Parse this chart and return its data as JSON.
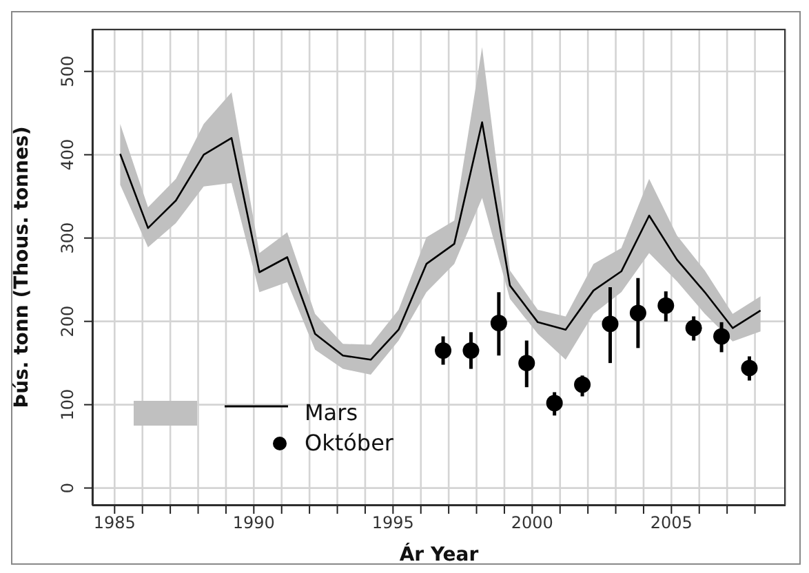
{
  "chart_data": {
    "type": "line",
    "xlabel": "Ár Year",
    "ylabel": "Þús. tonn (Thous. tonnes)",
    "xlim": [
      1984.2,
      2009.1
    ],
    "ylim": [
      -21,
      551
    ],
    "xticks": [
      1985,
      {
        "value": 1986,
        "label": null
      },
      {
        "value": 1987,
        "label": null
      },
      {
        "value": 1988,
        "label": null
      },
      {
        "value": 1989,
        "label": null
      },
      1990,
      {
        "value": 1991,
        "label": null
      },
      {
        "value": 1992,
        "label": null
      },
      {
        "value": 1993,
        "label": null
      },
      {
        "value": 1994,
        "label": null
      },
      1995,
      {
        "value": 1996,
        "label": null
      },
      {
        "value": 1997,
        "label": null
      },
      {
        "value": 1998,
        "label": null
      },
      {
        "value": 1999,
        "label": null
      },
      2000,
      {
        "value": 2001,
        "label": null
      },
      {
        "value": 2002,
        "label": null
      },
      {
        "value": 2003,
        "label": null
      },
      {
        "value": 2004,
        "label": null
      },
      2005,
      {
        "value": 2006,
        "label": null
      },
      {
        "value": 2007,
        "label": null
      },
      {
        "value": 2008,
        "label": null
      }
    ],
    "yticks": [
      0,
      100,
      200,
      300,
      400,
      500
    ],
    "grid": true,
    "legend": "bottom left",
    "series": [
      {
        "name": "Mars",
        "color": "#000000",
        "marker": "none",
        "x": [
          1985.2,
          1986.2,
          1987.2,
          1988.2,
          1989.2,
          1990.2,
          1991.2,
          1992.2,
          1993.2,
          1994.2,
          1995.2,
          1996.2,
          1997.2,
          1998.2,
          1999.2,
          2000.2,
          2001.2,
          2002.2,
          2003.2,
          2004.2,
          2005.2,
          2006.2,
          2007.2,
          2008.2
        ],
        "values": [
          401,
          312,
          345,
          400,
          420,
          259,
          277,
          185,
          159,
          154,
          190,
          269,
          293,
          439,
          243,
          199,
          190,
          237,
          260,
          327,
          274,
          235,
          192,
          213
        ],
        "lower": [
          364,
          289,
          318,
          362,
          366,
          235,
          247,
          166,
          143,
          136,
          177,
          235,
          269,
          348,
          227,
          185,
          154,
          209,
          235,
          282,
          248,
          209,
          176,
          188
        ],
        "upper": [
          437,
          337,
          371,
          437,
          475,
          282,
          307,
          209,
          173,
          172,
          214,
          301,
          321,
          529,
          261,
          214,
          206,
          269,
          288,
          371,
          303,
          261,
          209,
          230
        ]
      },
      {
        "name": "Október",
        "type": "scatter",
        "color": "#000000",
        "marker": "circle",
        "x": [
          1996.8,
          1997.8,
          1998.8,
          1999.8,
          2000.8,
          2001.8,
          2002.8,
          2003.8,
          2004.8,
          2005.8,
          2006.8,
          2007.8
        ],
        "values": [
          165,
          165,
          198,
          150,
          102,
          124,
          197,
          210,
          219,
          192,
          182,
          144
        ],
        "errors": [
          [
            148,
            182
          ],
          [
            143,
            187
          ],
          [
            159,
            235
          ],
          [
            121,
            177
          ],
          [
            87,
            115
          ],
          [
            110,
            135
          ],
          [
            150,
            241
          ],
          [
            168,
            252
          ],
          [
            200,
            236
          ],
          [
            177,
            206
          ],
          [
            163,
            199
          ],
          [
            129,
            158
          ]
        ]
      }
    ]
  }
}
